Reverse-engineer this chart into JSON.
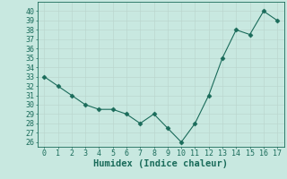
{
  "x": [
    0,
    1,
    2,
    3,
    4,
    5,
    6,
    7,
    8,
    9,
    10,
    11,
    12,
    13,
    14,
    15,
    16,
    17
  ],
  "y": [
    33,
    32,
    31,
    30,
    29.5,
    29.5,
    29,
    28,
    29,
    27.5,
    26,
    28,
    31,
    35,
    38,
    37.5,
    40,
    39
  ],
  "line_color": "#1a6b5a",
  "marker": "D",
  "marker_size": 2.5,
  "background_color": "#c8e8e0",
  "grid_color": "#b8d4cc",
  "xlabel": "Humidex (Indice chaleur)",
  "xlabel_fontsize": 7.5,
  "tick_fontsize": 6,
  "ylim": [
    25.5,
    41
  ],
  "xlim": [
    -0.5,
    17.5
  ],
  "yticks": [
    26,
    27,
    28,
    29,
    30,
    31,
    32,
    33,
    34,
    35,
    36,
    37,
    38,
    39,
    40
  ],
  "xticks": [
    0,
    1,
    2,
    3,
    4,
    5,
    6,
    7,
    8,
    9,
    10,
    11,
    12,
    13,
    14,
    15,
    16,
    17
  ]
}
